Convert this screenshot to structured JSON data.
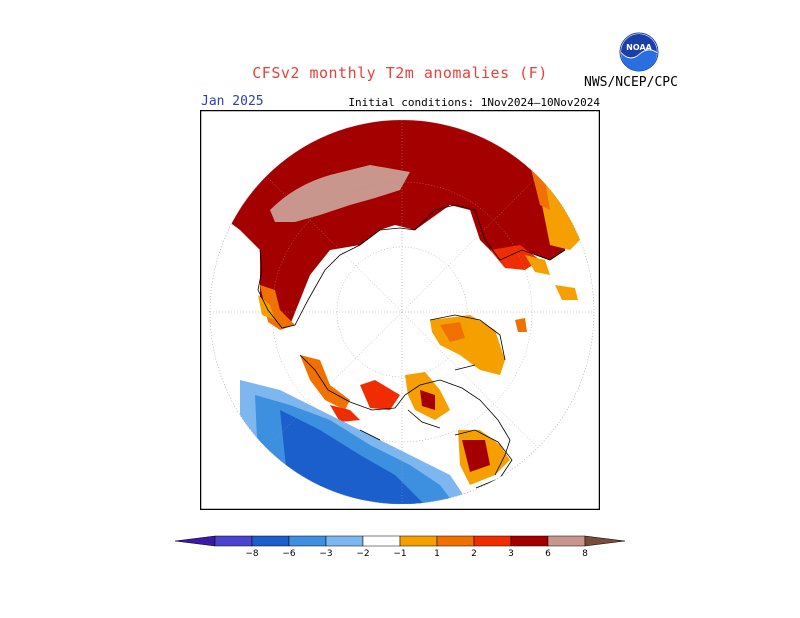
{
  "title": "CFSv2 monthly T2m anomalies (F)",
  "agency": "NWS/NCEP/CPC",
  "logo_text": "NOAA",
  "month": "Jan 2025",
  "initial_conditions": "Initial conditions: 1Nov2024–10Nov2024",
  "colorbar": {
    "labels": [
      "−8",
      "−6",
      "−3",
      "−2",
      "−1",
      "1",
      "2",
      "3",
      "6",
      "8"
    ],
    "colors": [
      "#3a1aa8",
      "#4a44d0",
      "#1b5fcc",
      "#3d8fe0",
      "#7eb6f0",
      "#ffffff",
      "#f5a000",
      "#f07000",
      "#f02d00",
      "#a50000",
      "#c8968c",
      "#7a4a3a"
    ]
  },
  "map": {
    "projection": "north-polar-stereographic",
    "palette": {
      "dark_red": "#a50000",
      "red": "#f02d00",
      "orange_red": "#f07000",
      "orange": "#f5a000",
      "pink": "#c8968c",
      "light_blue": "#7eb6f0",
      "mid_blue": "#3d8fe0",
      "blue": "#1b5fcc"
    }
  }
}
